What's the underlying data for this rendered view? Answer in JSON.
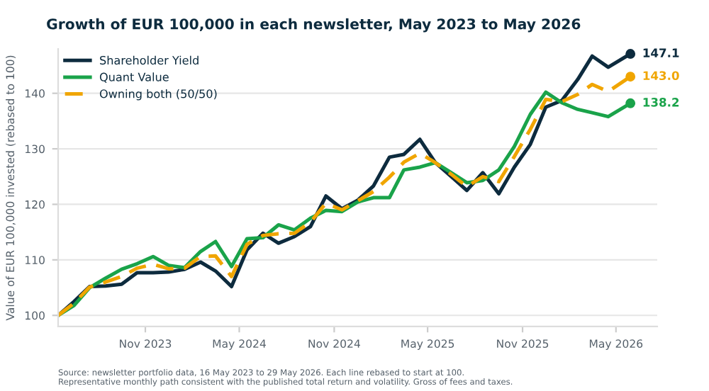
{
  "chart_data": {
    "type": "line",
    "title": "Growth of EUR 100,000 in each newsletter, May 2023 to May 2026",
    "ylabel": "Value of EUR 100,000 invested (rebased to 100)",
    "x": [
      "2023-05-16",
      "2023-06-16",
      "2023-07-16",
      "2023-08-16",
      "2023-09-16",
      "2023-10-16",
      "2023-11-16",
      "2023-12-16",
      "2024-01-16",
      "2024-02-16",
      "2024-03-16",
      "2024-04-16",
      "2024-05-16",
      "2024-06-16",
      "2024-07-16",
      "2024-08-16",
      "2024-09-16",
      "2024-10-16",
      "2024-11-16",
      "2024-12-16",
      "2025-01-16",
      "2025-02-16",
      "2025-03-16",
      "2025-04-16",
      "2025-05-16",
      "2025-06-16",
      "2025-07-16",
      "2025-08-16",
      "2025-09-16",
      "2025-10-16",
      "2025-11-16",
      "2025-12-16",
      "2026-01-16",
      "2026-02-16",
      "2026-03-16",
      "2026-04-16",
      "2026-05-29"
    ],
    "series": [
      {
        "name": "Shareholder Yield",
        "color": "#0d2b3e",
        "line_style": "solid",
        "values": [
          100,
          102.5,
          105.2,
          105.3,
          105.6,
          107.7,
          107.7,
          107.8,
          108.3,
          109.6,
          108,
          105.2,
          111.8,
          114.8,
          113,
          114.2,
          116,
          121.5,
          119.2,
          120.7,
          123.3,
          128.5,
          129,
          131.7,
          127.5,
          125,
          122.5,
          125.7,
          121.9,
          126.7,
          130.8,
          137.5,
          138.7,
          142.5,
          146.7,
          144.7,
          147.1
        ]
      },
      {
        "name": "Quant Value",
        "color": "#1aa34a",
        "line_style": "solid",
        "values": [
          100,
          101.8,
          105,
          106.7,
          108.3,
          109.3,
          110.6,
          109,
          108.6,
          111.5,
          113.3,
          108.8,
          113.8,
          114,
          116.3,
          115.4,
          117.5,
          118.9,
          118.7,
          120.4,
          121.2,
          121.2,
          126.2,
          126.7,
          127.5,
          125.7,
          123.9,
          124.3,
          126.2,
          130.4,
          136.2,
          140.2,
          138.3,
          137.1,
          136.5,
          135.8,
          138.2
        ]
      },
      {
        "name": "Owning both (50/50)",
        "color": "#f0a500",
        "line_style": "dashed",
        "values": [
          100,
          102.2,
          105.1,
          106,
          107,
          108.5,
          109.2,
          108.4,
          108.5,
          110.6,
          110.7,
          107,
          112.8,
          114.4,
          114.7,
          114.8,
          116.8,
          120.2,
          119,
          120.6,
          122.3,
          124.9,
          127.6,
          129.2,
          127.5,
          125.4,
          123.2,
          125,
          124.1,
          128.6,
          133.5,
          138.9,
          138.5,
          139.8,
          141.6,
          140.3,
          143.0
        ]
      }
    ],
    "xlim": [
      "2023-05-16",
      "2026-07-20"
    ],
    "xticks": [
      {
        "value": "2023-11-01",
        "label": "Nov 2023"
      },
      {
        "value": "2024-05-01",
        "label": "May 2024"
      },
      {
        "value": "2024-11-01",
        "label": "Nov 2024"
      },
      {
        "value": "2025-05-01",
        "label": "May 2025"
      },
      {
        "value": "2025-11-01",
        "label": "Nov 2025"
      },
      {
        "value": "2026-05-01",
        "label": "May 2026"
      }
    ],
    "ylim": [
      98,
      148
    ],
    "yticks": [
      100,
      110,
      120,
      130,
      140
    ],
    "grid": "y",
    "legend": "top left",
    "annotations": [
      {
        "text": "147.1",
        "x": "2026-05-29",
        "y": 147.1
      },
      {
        "text": "143.0",
        "x": "2026-05-29",
        "y": 143.0
      },
      {
        "text": "138.2",
        "x": "2026-05-29",
        "y": 138.2
      },
      "Source: newsletter portfolio data, 16 May 2023 to 29 May 2026. Each line rebased to start at 100.\nRepresentative monthly path consistent with the published total return and volatility. Gross of fees and taxes."
    ]
  }
}
